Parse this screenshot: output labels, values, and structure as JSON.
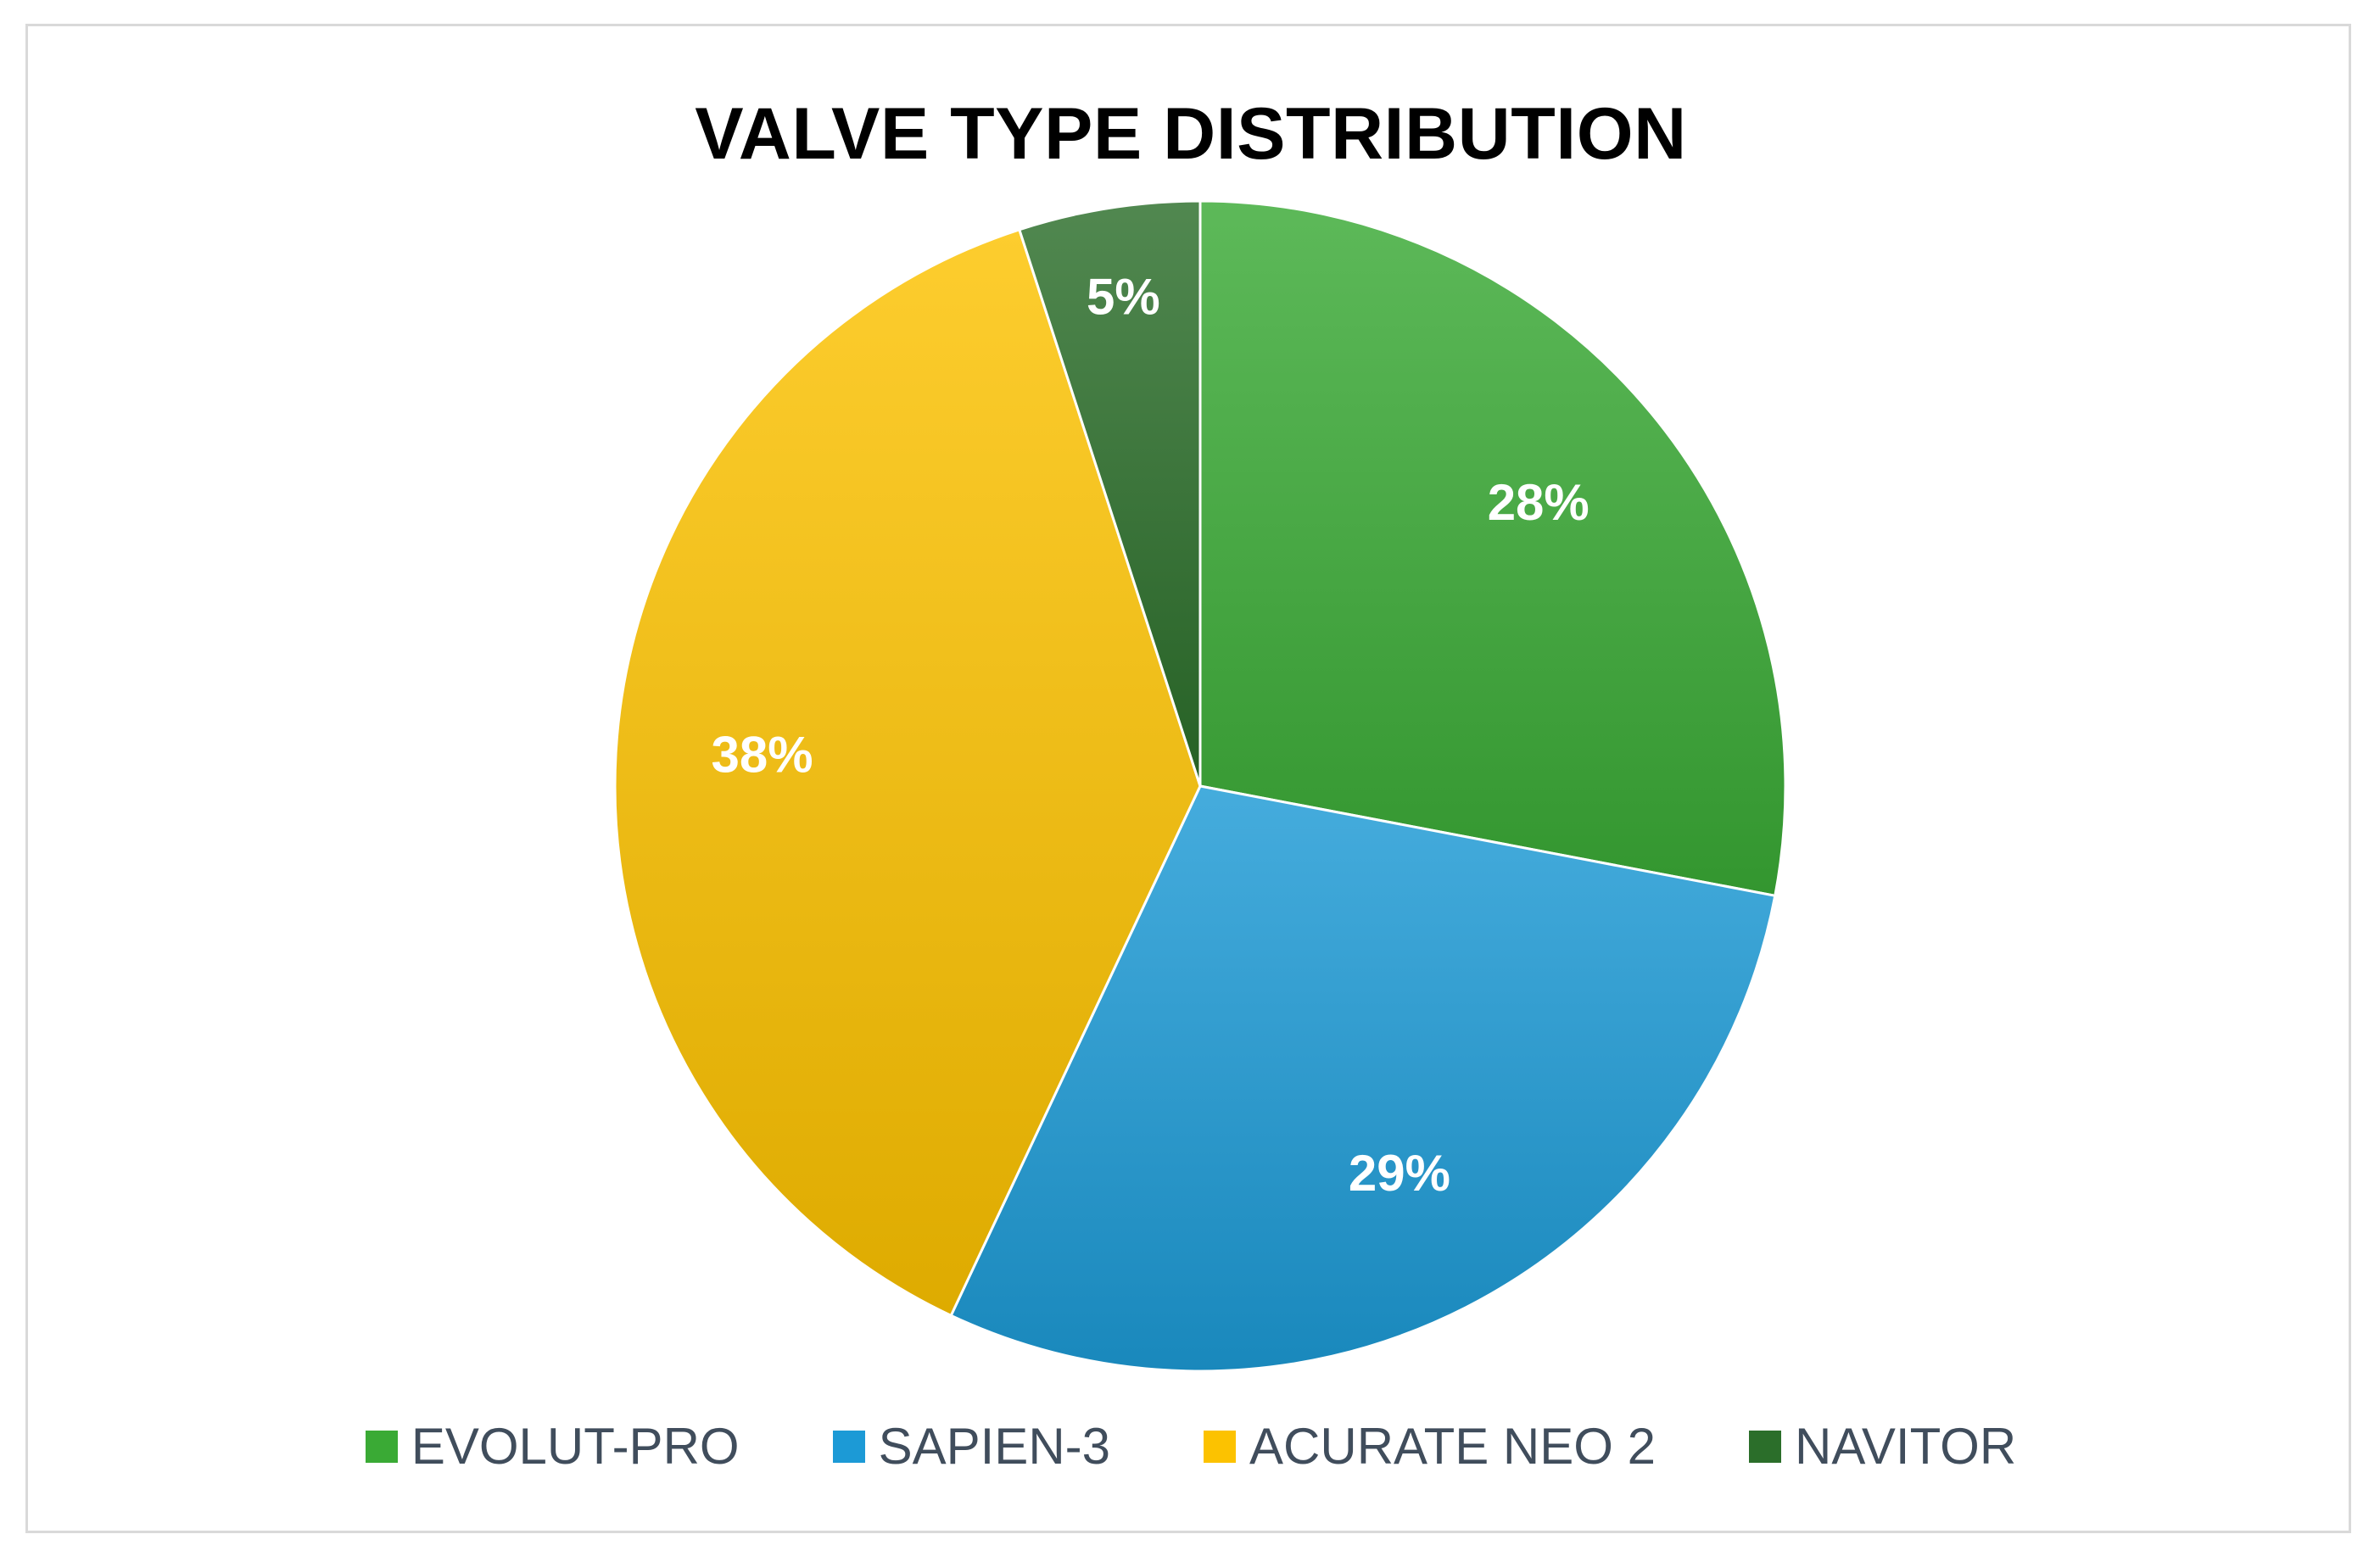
{
  "chart_data": {
    "type": "pie",
    "title": "VALVE TYPE DISTRIBUTION",
    "legend_position": "bottom",
    "slices": [
      {
        "name": "EVOLUT-PRO",
        "value": 28,
        "label": "28%",
        "color": "#3aaa35"
      },
      {
        "name": "SAPIEN-3",
        "value": 29,
        "label": "29%",
        "color": "#1c9ad6"
      },
      {
        "name": "ACURATE NEO 2",
        "value": 38,
        "label": "38%",
        "color": "#fcc200"
      },
      {
        "name": "NAVITOR",
        "value": 5,
        "label": "5%",
        "color": "#2b6e2a"
      }
    ]
  }
}
